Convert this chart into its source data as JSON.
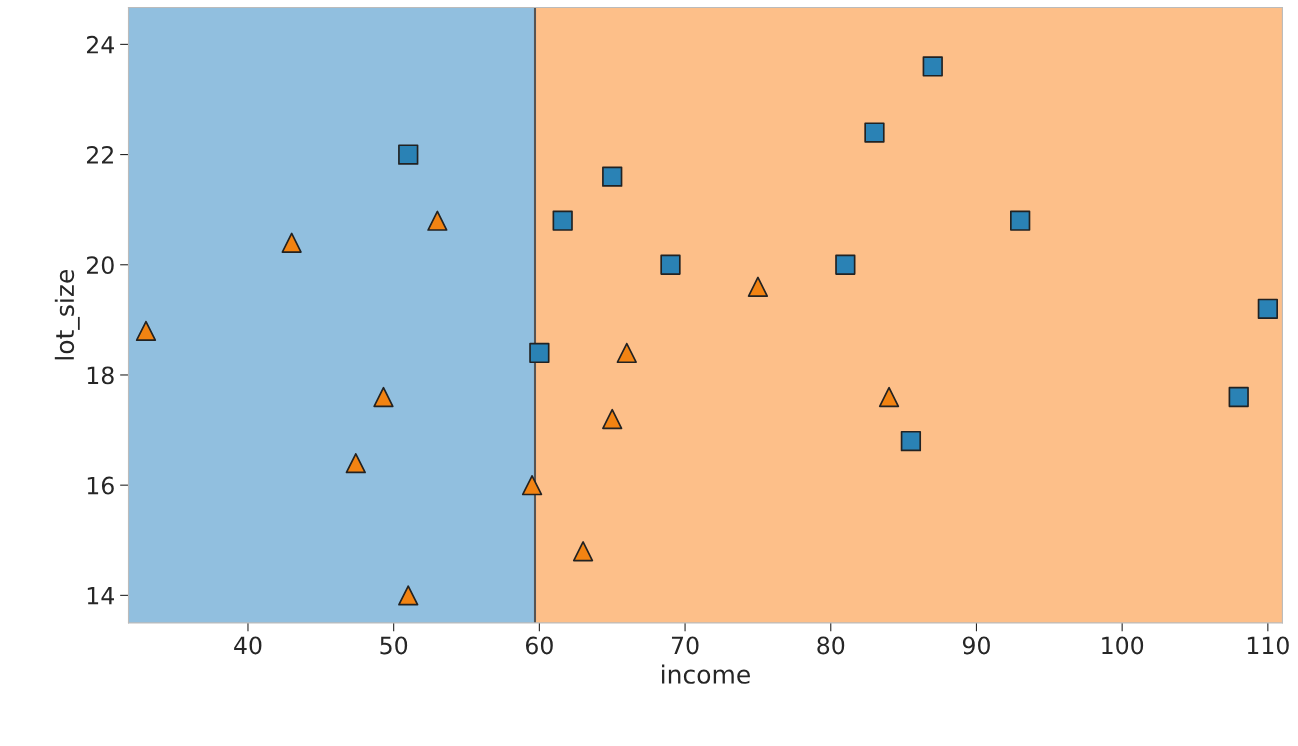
{
  "chart_data": {
    "type": "scatter",
    "xlabel": "income",
    "ylabel": "lot_size",
    "xlim": [
      31.8,
      111
    ],
    "ylim": [
      13.5,
      24.67
    ],
    "xticks": [
      40,
      50,
      60,
      70,
      80,
      90,
      100,
      110
    ],
    "yticks": [
      14,
      16,
      18,
      20,
      22,
      24
    ],
    "grid": false,
    "bands": [
      {
        "axis": "x",
        "from": 31.8,
        "to": 59.7,
        "color": "#91bfdf"
      },
      {
        "axis": "x",
        "from": 59.7,
        "to": 111,
        "color": "#fdbf89"
      }
    ],
    "ref_lines": [
      {
        "axis": "x",
        "value": 59.7,
        "color": "#555555",
        "line_style": "solid"
      }
    ],
    "series": [
      {
        "color": "#2a82b5",
        "marker": "square",
        "x": [
          51,
          65,
          61.6,
          69,
          60,
          81,
          83,
          87,
          93,
          110,
          108,
          85.5
        ],
        "values": [
          22,
          21.6,
          20.8,
          20,
          18.4,
          20,
          22.4,
          23.6,
          20.8,
          19.2,
          17.6,
          16.8
        ]
      },
      {
        "color": "#f28312",
        "marker": "triangle",
        "x": [
          33,
          43,
          53,
          49.3,
          47.4,
          51,
          59.5,
          63,
          65,
          66,
          75,
          84
        ],
        "values": [
          18.8,
          20.4,
          20.8,
          17.6,
          16.4,
          14,
          16,
          14.8,
          17.2,
          18.4,
          19.6,
          17.6
        ]
      }
    ]
  }
}
